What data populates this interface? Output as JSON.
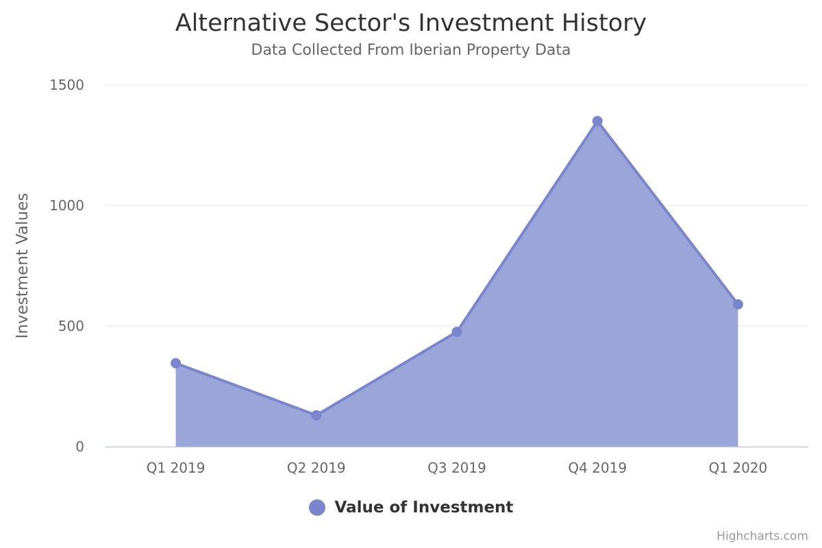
{
  "header": {
    "title": "Alternative Sector's Investment History",
    "subtitle": "Data Collected From Iberian Property Data"
  },
  "legend": {
    "label": "Value of Investment",
    "color": "#7986cb"
  },
  "credits": "Highcharts.com",
  "colors": {
    "series_line": "#7986cb",
    "series_fill": "#9aa5d9",
    "grid": "#e6e6e6",
    "axis_line": "#ccd6eb",
    "tick_text": "#666666"
  },
  "chart_data": {
    "type": "area",
    "title": "Alternative Sector's Investment History",
    "subtitle": "Data Collected From Iberian Property Data",
    "xlabel": "",
    "ylabel": "Investment Values",
    "categories": [
      "Q1 2019",
      "Q2 2019",
      "Q3 2019",
      "Q4 2019",
      "Q1 2020"
    ],
    "series": [
      {
        "name": "Value of Investment",
        "values": [
          346,
          130,
          476,
          1350,
          590
        ]
      }
    ],
    "yticks": [
      0,
      500,
      1000,
      1500
    ],
    "ylim": [
      0,
      1500
    ],
    "grid": true,
    "legend_position": "bottom-center"
  }
}
